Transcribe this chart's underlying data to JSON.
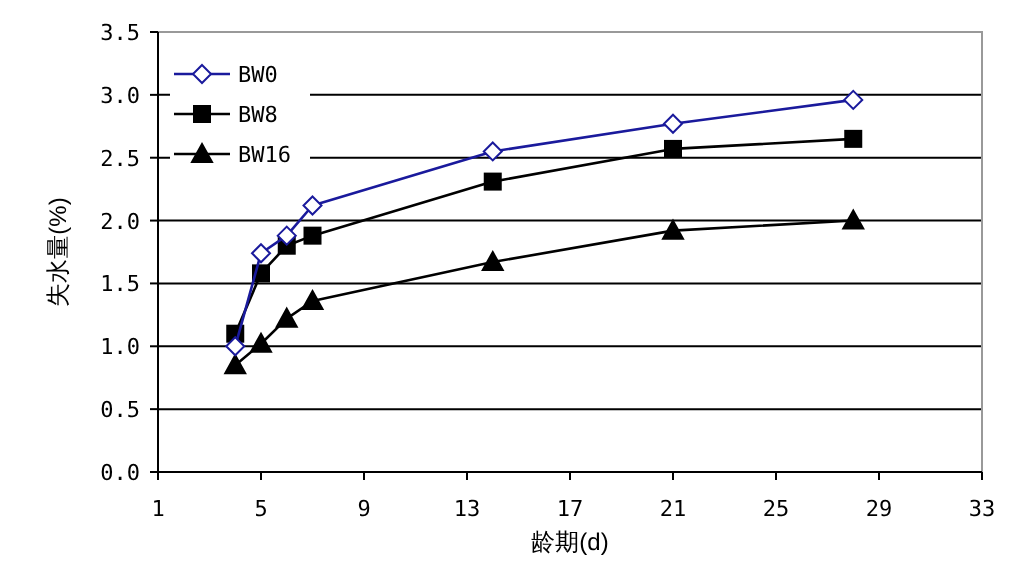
{
  "chart_data": {
    "type": "line",
    "xlabel": "龄期(d)",
    "ylabel": "失水量(%)",
    "x": [
      4,
      5,
      6,
      7,
      14,
      21,
      28
    ],
    "series": [
      {
        "name": "BW0",
        "color": "#1a1a9c",
        "marker": "diamond",
        "values": [
          1.0,
          1.74,
          1.88,
          2.12,
          2.55,
          2.77,
          2.96
        ]
      },
      {
        "name": "BW8",
        "color": "#000000",
        "marker": "square",
        "values": [
          1.1,
          1.58,
          1.8,
          1.88,
          2.31,
          2.57,
          2.65
        ]
      },
      {
        "name": "BW16",
        "color": "#000000",
        "marker": "triangle",
        "values": [
          0.85,
          1.02,
          1.22,
          1.36,
          1.67,
          1.92,
          2.0
        ]
      }
    ],
    "xlim": [
      1,
      33
    ],
    "xticks": [
      1,
      5,
      9,
      13,
      17,
      21,
      25,
      29,
      33
    ],
    "ylim": [
      0,
      3.5
    ],
    "yticks": [
      {
        "value": 0,
        "label": "0.0"
      },
      {
        "value": 0.5,
        "label": "0.5"
      },
      {
        "value": 1,
        "label": "1.0"
      },
      {
        "value": 1.5,
        "label": "1.5"
      },
      {
        "value": 2,
        "label": "2.0"
      },
      {
        "value": 2.5,
        "label": "2.5"
      },
      {
        "value": 3,
        "label": "3.0"
      },
      {
        "value": 3.5,
        "label": "3.5"
      }
    ],
    "grid": "y",
    "legend": "top left",
    "line_style": "solid"
  }
}
